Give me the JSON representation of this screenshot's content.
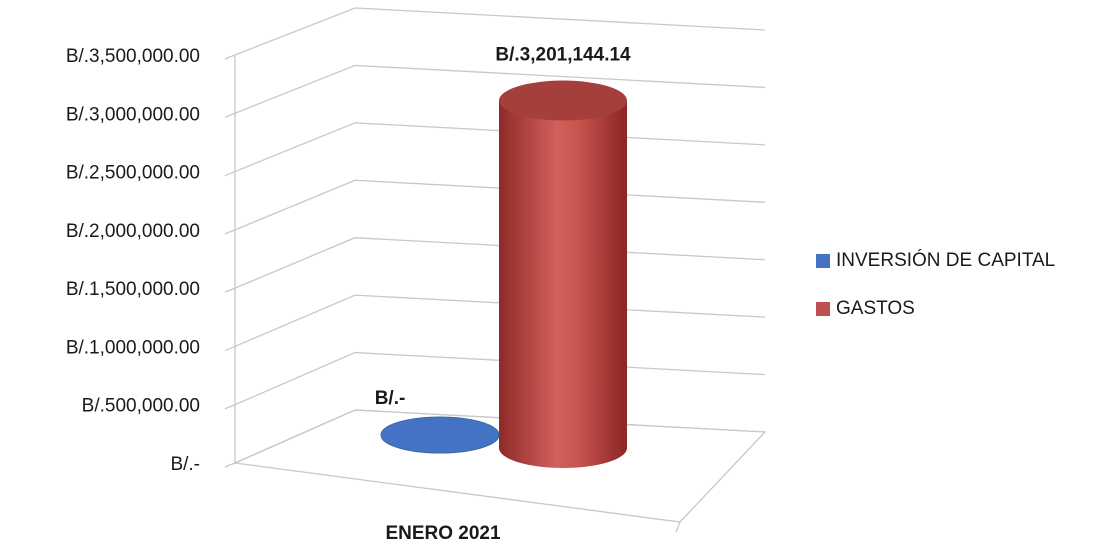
{
  "chart_data": {
    "type": "bar",
    "style": "3d-cylinder",
    "categories": [
      "ENERO 2021"
    ],
    "series": [
      {
        "name": "INVERSIÓN DE CAPITAL",
        "values": [
          0
        ],
        "color": "#4472C4",
        "data_label": "B/.-"
      },
      {
        "name": "GASTOS",
        "values": [
          3201144.14
        ],
        "color": "#C0504D",
        "data_label": "B/.3,201,144.14"
      }
    ],
    "ylim": [
      0,
      3500000
    ],
    "y_ticks": [
      {
        "value": 0,
        "label": "B/.-"
      },
      {
        "value": 500000,
        "label": "B/.500,000.00"
      },
      {
        "value": 1000000,
        "label": "B/.1,000,000.00"
      },
      {
        "value": 1500000,
        "label": "B/.1,500,000.00"
      },
      {
        "value": 2000000,
        "label": "B/.2,000,000.00"
      },
      {
        "value": 2500000,
        "label": "B/.2,500,000.00"
      },
      {
        "value": 3000000,
        "label": "B/.3,000,000.00"
      },
      {
        "value": 3500000,
        "label": "B/.3,500,000.00"
      }
    ],
    "grid": true,
    "legend_position": "right"
  }
}
